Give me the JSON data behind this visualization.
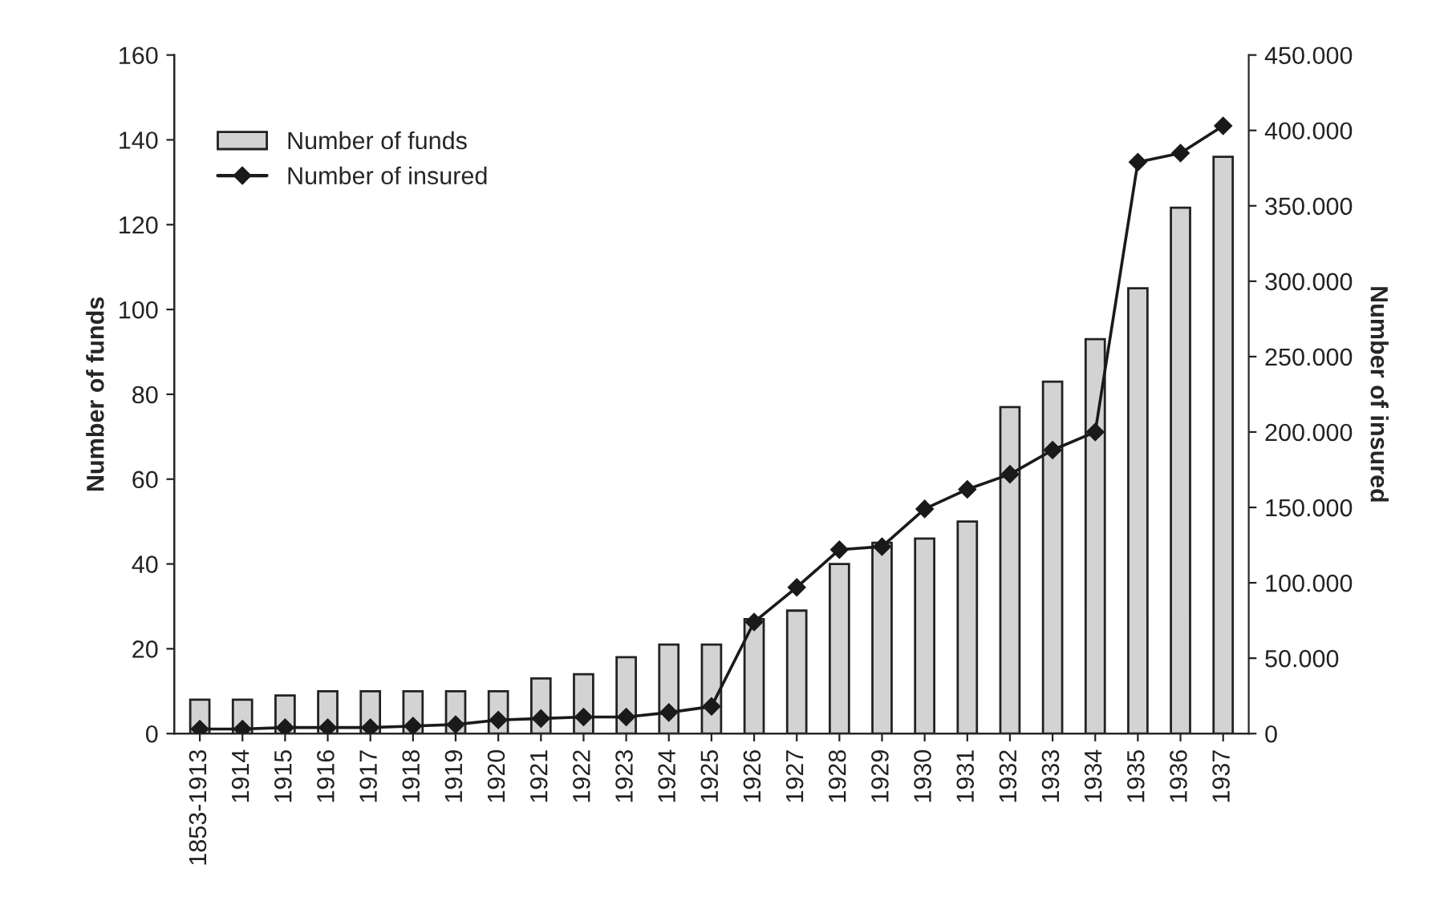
{
  "chart_data": {
    "type": "bar",
    "ylabel": "Number of funds",
    "y2label": "Number of insured",
    "categories": [
      "1853-1913",
      "1914",
      "1915",
      "1916",
      "1917",
      "1918",
      "1919",
      "1920",
      "1921",
      "1922",
      "1923",
      "1924",
      "1925",
      "1926",
      "1927",
      "1928",
      "1929",
      "1930",
      "1931",
      "1932",
      "1933",
      "1934",
      "1935",
      "1936",
      "1937"
    ],
    "series": [
      {
        "name": "Number of funds",
        "color": "#d3d3d3",
        "values": [
          8,
          8,
          9,
          10,
          10,
          10,
          10,
          10,
          13,
          14,
          18,
          21,
          21,
          27,
          29,
          40,
          45,
          46,
          50,
          77,
          83,
          93,
          105,
          124,
          136
        ]
      },
      {
        "name": "Number of insured",
        "type": "line",
        "axis": "y2",
        "color": "#1a1a1a",
        "marker": "diamond",
        "values": [
          3000,
          3000,
          4000,
          4000,
          4000,
          5000,
          6000,
          9000,
          10000,
          11000,
          11000,
          14000,
          18000,
          74000,
          97000,
          122000,
          124000,
          149000,
          162000,
          172000,
          188000,
          200000,
          379000,
          385000,
          403000
        ]
      }
    ],
    "ylim": [
      0,
      160
    ],
    "yticks": [
      0,
      20,
      40,
      60,
      80,
      100,
      120,
      140,
      160
    ],
    "y2lim": [
      0,
      450000
    ],
    "y2ticks": [
      {
        "value": 0,
        "label": "0"
      },
      {
        "value": 50000,
        "label": "50.000"
      },
      {
        "value": 100000,
        "label": "100.000"
      },
      {
        "value": 150000,
        "label": "150.000"
      },
      {
        "value": 200000,
        "label": "200.000"
      },
      {
        "value": 250000,
        "label": "250.000"
      },
      {
        "value": 300000,
        "label": "300.000"
      },
      {
        "value": 350000,
        "label": "350.000"
      },
      {
        "value": 400000,
        "label": "400.000"
      },
      {
        "value": 450000,
        "label": "450.000"
      }
    ],
    "grid": false,
    "legend": "top left"
  }
}
